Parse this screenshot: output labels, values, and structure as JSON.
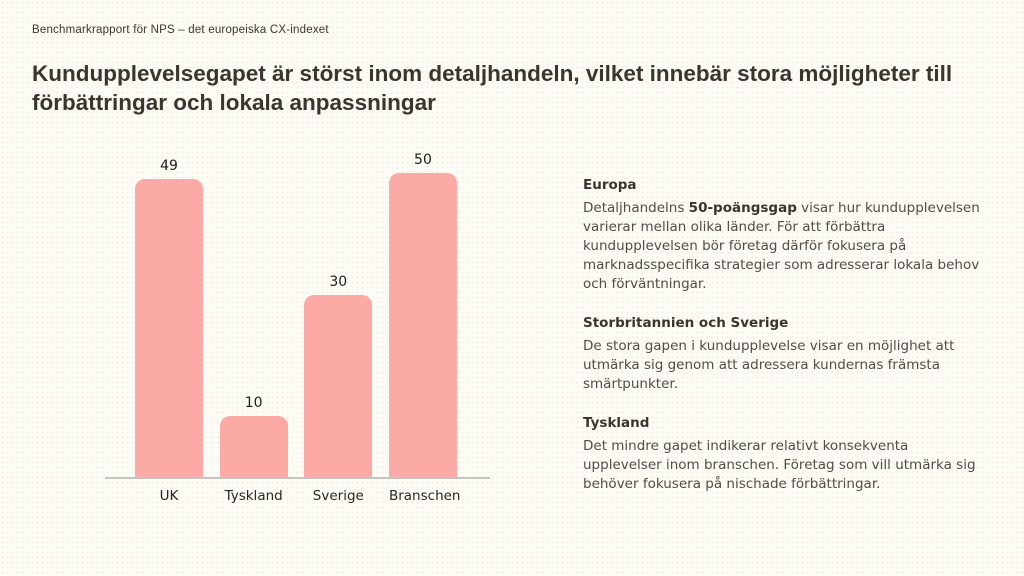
{
  "page": {
    "eyebrow": "Benchmarkrapport för NPS – det europeiska CX-indexet",
    "title": "Kundupplevelsegapet är störst inom detaljhandeln, vilket innebär stora möjligheter till förbättringar och lokala anpassningar"
  },
  "chart_data": {
    "type": "bar",
    "categories": [
      "UK",
      "Tyskland",
      "Sverige",
      "Branschen"
    ],
    "values": [
      49,
      10,
      30,
      50
    ],
    "title": "",
    "xlabel": "",
    "ylabel": "",
    "ylim": [
      0,
      50
    ],
    "grid": false,
    "legend": false,
    "value_labels_shown": true,
    "bar_color": "#fbaaa6",
    "baseline_color": "#c6c4bf"
  },
  "insights": {
    "sections": [
      {
        "heading": "Europa",
        "body_prefix": "Detaljhandelns ",
        "body_bold": "50-poängsgap",
        "body_suffix": " visar hur kundupplevelsen varierar mellan olika länder. För att förbättra kundupplevelsen bör företag därför fokusera på marknadsspecifika strategier som adresserar lokala behov och förväntningar."
      },
      {
        "heading": "Storbritannien och Sverige",
        "body": "De stora gapen i kundupplevelse visar en möjlighet att utmärka sig genom att adressera kundernas främsta smärtpunkter."
      },
      {
        "heading": "Tyskland",
        "body": "Det mindre gapet indikerar relativt konsekventa upplevelser inom branschen. Företag som vill utmärka sig behöver fokusera på nischade förbättringar."
      }
    ]
  },
  "colors": {
    "background": "#fdfcf7",
    "bar": "#fbaaa6",
    "baseline": "#c6c4bf",
    "title_text": "#3a352e",
    "body_text": "#524d46"
  }
}
